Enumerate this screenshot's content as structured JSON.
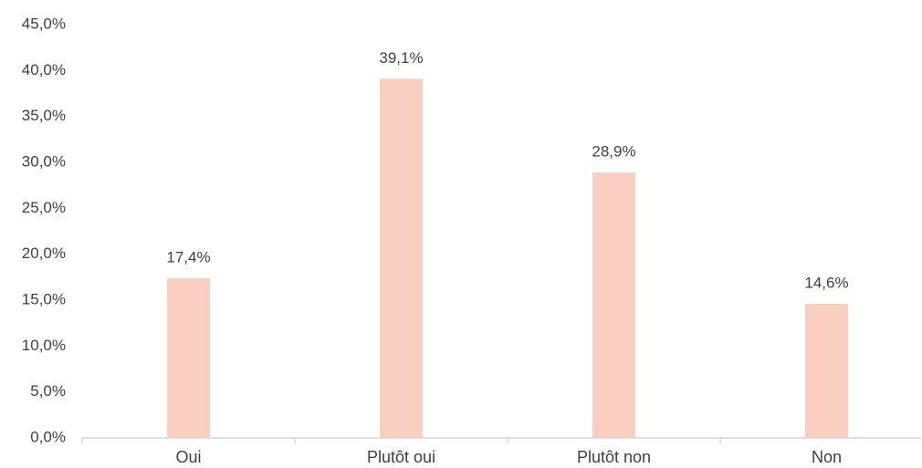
{
  "chart_data": {
    "type": "bar",
    "categories": [
      "Oui",
      "Plutôt oui",
      "Plutôt non",
      "Non"
    ],
    "values": [
      17.4,
      39.1,
      28.9,
      14.6
    ],
    "value_labels": [
      "17,4%",
      "39,1%",
      "28,9%",
      "14,6%"
    ],
    "color": "#f8cfc1",
    "ylim": [
      0,
      45
    ],
    "yticks": [
      {
        "value": 0,
        "label": "0,0%"
      },
      {
        "value": 5,
        "label": "5,0%"
      },
      {
        "value": 10,
        "label": "10,0%"
      },
      {
        "value": 15,
        "label": "15,0%"
      },
      {
        "value": 20,
        "label": "20,0%"
      },
      {
        "value": 25,
        "label": "25,0%"
      },
      {
        "value": 30,
        "label": "30,0%"
      },
      {
        "value": 35,
        "label": "35,0%"
      },
      {
        "value": 40,
        "label": "40,0%"
      },
      {
        "value": 45,
        "label": "45,0%"
      }
    ],
    "grid": false
  }
}
